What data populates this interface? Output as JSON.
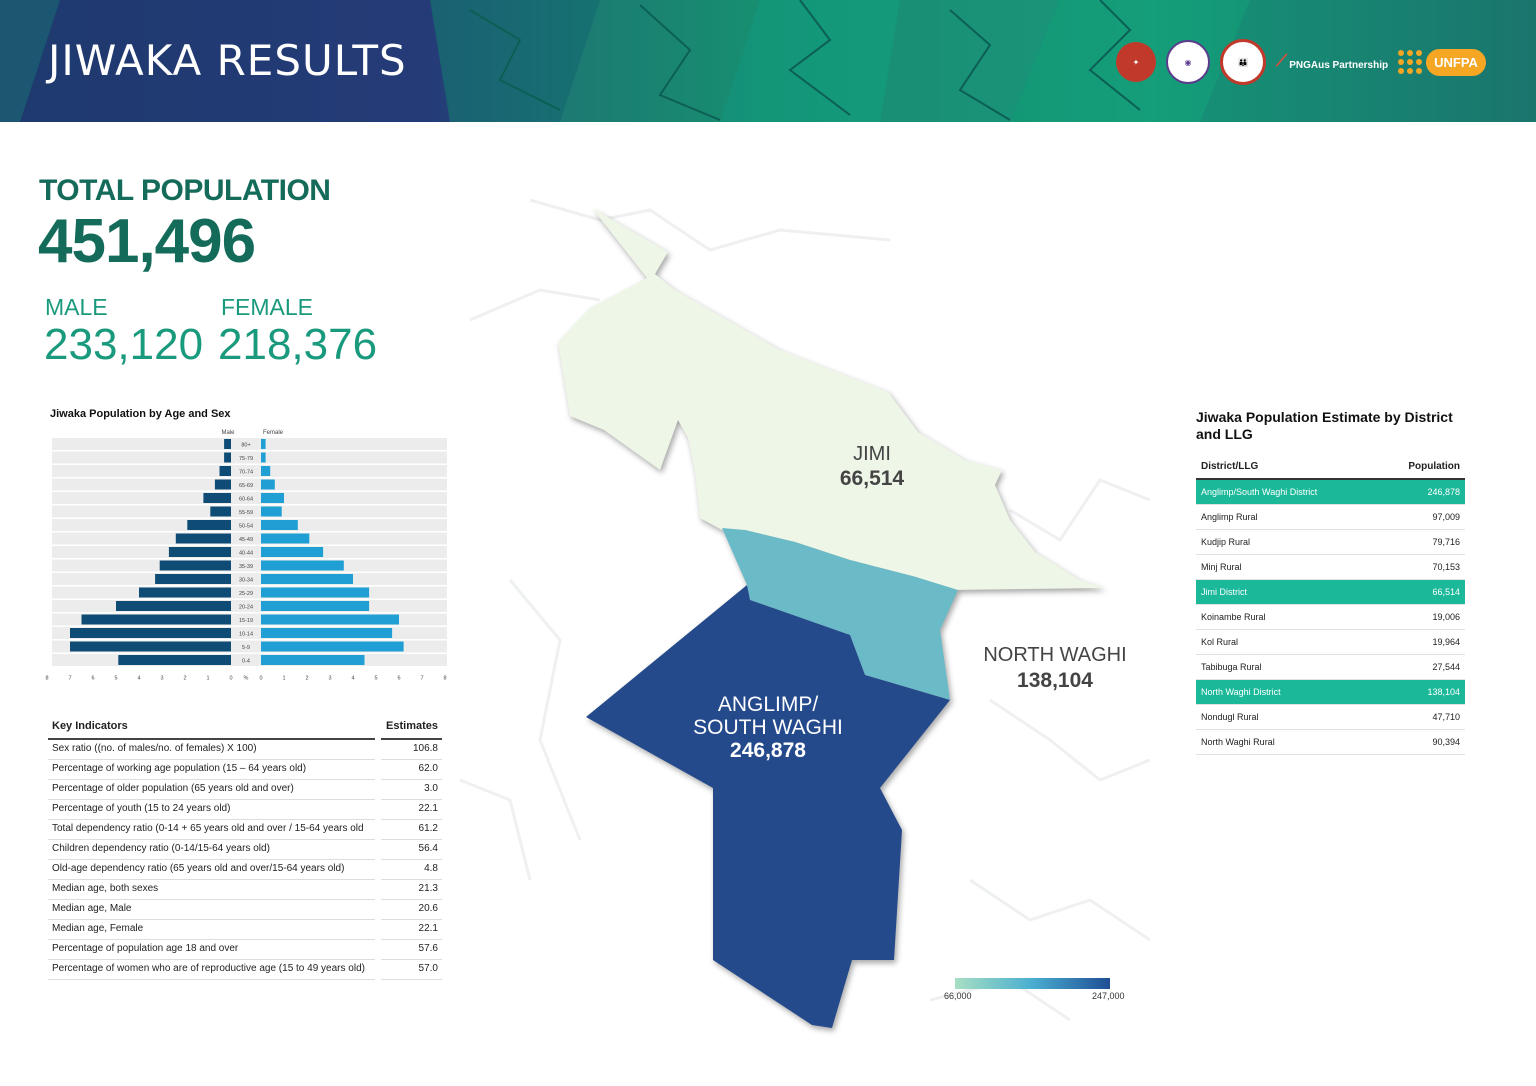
{
  "header": {
    "title": "JIWAKA RESULTS",
    "partner_label": "PNGAus Partnership",
    "unfpa_label": "UNFPA"
  },
  "totals": {
    "label": "TOTAL POPULATION",
    "value": "451,496",
    "male_label": "MALE",
    "male_value": "233,120",
    "female_label": "FEMALE",
    "female_value": "218,376"
  },
  "pyramid": {
    "title": "Jiwaka Population by Age and Sex",
    "male_label": "Male",
    "female_label": "Female",
    "unit": "%",
    "male_ticks": [
      "8",
      "7",
      "6",
      "5",
      "4",
      "3",
      "2",
      "1",
      "0"
    ],
    "female_ticks": [
      "0",
      "1",
      "2",
      "3",
      "4",
      "5",
      "6",
      "7",
      "8"
    ],
    "colors": {
      "male": "#0f4c75",
      "female": "#1f9fd4",
      "row_bg": "#ececec"
    }
  },
  "chart_data": {
    "type": "bar",
    "title": "Jiwaka Population by Age and Sex",
    "categories": [
      "80+",
      "75-79",
      "70-74",
      "65-69",
      "60-64",
      "55-59",
      "50-54",
      "45-49",
      "40-44",
      "35-39",
      "30-34",
      "25-29",
      "20-24",
      "15-19",
      "10-14",
      "5-9",
      "0-4"
    ],
    "series": [
      {
        "name": "Male",
        "values": [
          0.3,
          0.3,
          0.5,
          0.7,
          1.2,
          0.9,
          1.9,
          2.4,
          2.7,
          3.1,
          3.3,
          4.0,
          5.0,
          6.5,
          7.0,
          7.0,
          4.9
        ]
      },
      {
        "name": "Female",
        "values": [
          0.2,
          0.2,
          0.4,
          0.6,
          1.0,
          0.9,
          1.6,
          2.1,
          2.7,
          3.6,
          4.0,
          4.7,
          4.7,
          6.0,
          5.7,
          6.2,
          4.5
        ]
      }
    ],
    "xlim": [
      0,
      8
    ],
    "xlabel": "%",
    "orientation": "horizontal"
  },
  "key_indicators": {
    "header_indicator": "Key Indicators",
    "header_estimate": "Estimates",
    "rows": [
      {
        "label": "Sex ratio ((no. of males/no. of females) X 100)",
        "value": "106.8"
      },
      {
        "label": "Percentage of working age population (15 – 64 years old)",
        "value": "62.0"
      },
      {
        "label": "Percentage of older population (65 years old and over)",
        "value": "3.0"
      },
      {
        "label": "Percentage of youth (15 to 24 years old)",
        "value": "22.1"
      },
      {
        "label": "Total dependency ratio (0-14 + 65 years old and over / 15-64 years old",
        "value": "61.2"
      },
      {
        "label": "Children dependency ratio (0-14/15-64 years old)",
        "value": "56.4"
      },
      {
        "label": "Old-age dependency ratio (65 years old and over/15-64 years old)",
        "value": "4.8"
      },
      {
        "label": "Median age, both sexes",
        "value": "21.3"
      },
      {
        "label": "Median age, Male",
        "value": "20.6"
      },
      {
        "label": "Median age, Female",
        "value": "22.1"
      },
      {
        "label": "Percentage of population age 18 and over",
        "value": "57.6"
      },
      {
        "label": "Percentage of women who are of reproductive age (15 to 49 years old)",
        "value": "57.0"
      }
    ]
  },
  "district_table": {
    "title": "Jiwaka Population Estimate by District and LLG",
    "header_name": "District/LLG",
    "header_population": "Population",
    "rows": [
      {
        "name": "Anglimp/South Waghi District",
        "value": "246,878",
        "is_district": true
      },
      {
        "name": "Anglimp Rural",
        "value": "97,009",
        "is_district": false
      },
      {
        "name": "Kudjip Rural",
        "value": "79,716",
        "is_district": false
      },
      {
        "name": "Minj Rural",
        "value": "70,153",
        "is_district": false
      },
      {
        "name": "Jimi District",
        "value": "66,514",
        "is_district": true
      },
      {
        "name": "Koinambe Rural",
        "value": "19,006",
        "is_district": false
      },
      {
        "name": "Kol Rural",
        "value": "19,964",
        "is_district": false
      },
      {
        "name": "Tabibuga Rural",
        "value": "27,544",
        "is_district": false
      },
      {
        "name": "North Waghi District",
        "value": "138,104",
        "is_district": true
      },
      {
        "name": "Nondugl Rural",
        "value": "47,710",
        "is_district": false
      },
      {
        "name": "North Waghi Rural",
        "value": "90,394",
        "is_district": false
      }
    ]
  },
  "map": {
    "regions": [
      {
        "id": "jimi",
        "name": "JIMI",
        "population": "66,514",
        "color": "#eef6e8"
      },
      {
        "id": "north-waghi",
        "name": "NORTH WAGHI",
        "population": "138,104",
        "color": "#6bbac7"
      },
      {
        "id": "anglimp",
        "name_line1": "ANGLIMP/",
        "name_line2": "SOUTH WAGHI",
        "population": "246,878",
        "color": "#244a8c"
      }
    ],
    "legend": {
      "min": "66,000",
      "max": "247,000"
    }
  }
}
